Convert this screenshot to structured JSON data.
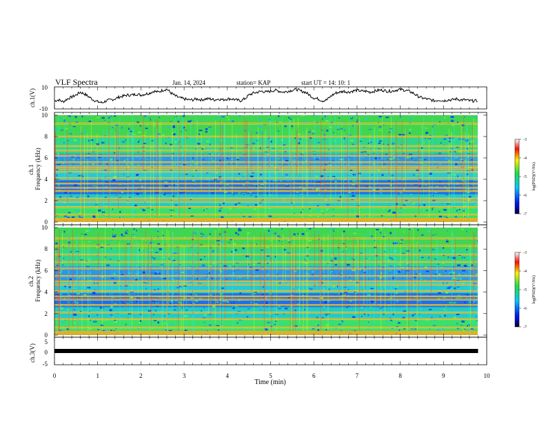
{
  "header": {
    "title": "VLF Spectra",
    "date": "Jan. 14, 2024",
    "station": "station= KAP",
    "start": "start UT =  14: 10: 1"
  },
  "chart_data": [
    {
      "type": "line",
      "ylabel": "ch.1(V)",
      "ylim": [
        -10,
        10
      ],
      "yticks": [
        "10",
        "-10"
      ],
      "xlim": [
        0,
        10
      ],
      "x": [
        0,
        0.1,
        0.2,
        0.3,
        0.4,
        0.5,
        0.6,
        0.7,
        0.8,
        0.9,
        1.0,
        1.1,
        1.2,
        1.3,
        1.4,
        1.5,
        1.6,
        1.7,
        1.8,
        1.9,
        2.0,
        2.1,
        2.2,
        2.3,
        2.4,
        2.5,
        2.6,
        2.7,
        2.8,
        2.9,
        3.0,
        3.1,
        3.2,
        3.3,
        3.4,
        3.5,
        3.6,
        3.7,
        3.8,
        3.9,
        4.0,
        4.1,
        4.2,
        4.3,
        4.4,
        4.5,
        4.6,
        4.7,
        4.8,
        4.9,
        5.0,
        5.1,
        5.2,
        5.3,
        5.4,
        5.5,
        5.6,
        5.7,
        5.8,
        5.9,
        6.0,
        6.1,
        6.2,
        6.3,
        6.4,
        6.5,
        6.6,
        6.7,
        6.8,
        6.9,
        7.0,
        7.1,
        7.2,
        7.3,
        7.4,
        7.5,
        7.6,
        7.7,
        7.8,
        7.9,
        8.0,
        8.1,
        8.2,
        8.3,
        8.4,
        8.5,
        8.6,
        8.7,
        8.8,
        8.9,
        9.0,
        9.1,
        9.2,
        9.3,
        9.4,
        9.5,
        9.6,
        9.7,
        9.8
      ],
      "values": [
        -3,
        -2,
        -4,
        -1,
        1,
        3,
        6,
        4,
        1,
        -2,
        -4,
        -5,
        -3,
        -2,
        -1,
        1,
        2,
        3,
        3,
        4,
        3,
        4,
        5,
        7,
        6,
        8,
        9,
        5,
        2,
        0,
        -1,
        -2,
        -2,
        -1,
        -2,
        -1,
        -1,
        -2,
        -1,
        -2,
        -1,
        -1,
        -2,
        -3,
        -1,
        3,
        5,
        6,
        7,
        6,
        7,
        8,
        7,
        6,
        7,
        8,
        9,
        7,
        6,
        3,
        0,
        -1,
        -3,
        -2,
        2,
        5,
        6,
        7,
        6,
        7,
        8,
        7,
        7,
        6,
        7,
        8,
        8,
        7,
        7,
        8,
        9,
        8,
        7,
        5,
        2,
        0,
        -1,
        -2,
        -3,
        -2,
        -3,
        -2,
        -2,
        -1,
        -2,
        -2,
        -3,
        -3,
        -3
      ]
    },
    {
      "type": "heatmap",
      "ylabel": "ch.1\nFrequency (kHz)",
      "ylim": [
        0,
        10
      ],
      "yticks": [
        "10",
        "8",
        "6",
        "4",
        "2",
        "0"
      ],
      "xlim": [
        0,
        10
      ],
      "colorbar": {
        "label": "log(PSD)(V²/Hz)",
        "ticks": [
          "-3",
          "-4",
          "-5",
          "-6",
          "-7"
        ]
      },
      "bands_khz": [
        0.3,
        0.7,
        1.4,
        1.9,
        2.2,
        2.9,
        3.2,
        3.6,
        4.1,
        4.7,
        5.0,
        5.2,
        5.6,
        6.2,
        6.7,
        7.1,
        8.0,
        9.2
      ]
    },
    {
      "type": "heatmap",
      "ylabel": "ch.2\nFrequency (kHz)",
      "ylim": [
        0,
        10
      ],
      "yticks": [
        "10",
        "8",
        "6",
        "4",
        "2",
        "0"
      ],
      "xlim": [
        0,
        10
      ],
      "colorbar": {
        "label": "log(PSD)(V²/Hz)",
        "ticks": [
          "-3",
          "-4",
          "-5",
          "-6",
          "-7"
        ]
      },
      "bands_khz": [
        0.3,
        0.7,
        1.5,
        2.1,
        2.8,
        3.3,
        3.6,
        4.1,
        4.7,
        5.0,
        5.5,
        6.2,
        6.8,
        7.5,
        8.3,
        9.0
      ]
    },
    {
      "type": "line",
      "ylabel": "ch.3(V)",
      "ylim": [
        -5,
        5
      ],
      "yticks": [
        "5",
        "0",
        "-5"
      ],
      "xlim": [
        0,
        10
      ],
      "x": [
        0,
        9.8
      ],
      "values": [
        0,
        0
      ]
    }
  ],
  "xaxis": {
    "label": "Time (min)",
    "ticks": [
      "0",
      "1",
      "2",
      "3",
      "4",
      "5",
      "6",
      "7",
      "8",
      "9",
      "10"
    ]
  }
}
